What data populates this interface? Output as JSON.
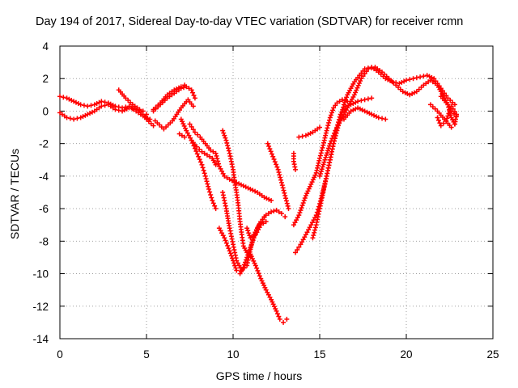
{
  "chart_data": {
    "type": "scatter",
    "title": "Day 194 of 2017, Sidereal Day-to-day VTEC variation (SDTVAR) for receiver rcmn",
    "xlabel": "GPS time / hours",
    "ylabel": "SDTVAR / TECUs",
    "xlim": [
      0,
      25
    ],
    "ylim": [
      -14,
      4
    ],
    "x_ticks": [
      "0",
      "5",
      "10",
      "15",
      "20",
      "25"
    ],
    "y_ticks": [
      "4",
      "2",
      "0",
      "-2",
      "-4",
      "-6",
      "-8",
      "-10",
      "-12",
      "-14"
    ],
    "x_tick_values": [
      0,
      5,
      10,
      15,
      20,
      25
    ],
    "y_tick_values": [
      4,
      2,
      0,
      -2,
      -4,
      -6,
      -8,
      -10,
      -12,
      -14
    ],
    "grid": true,
    "marker": "plus",
    "color": "#ff0000",
    "series": [
      {
        "points": [
          [
            0,
            0.9
          ],
          [
            0.4,
            0.8
          ],
          [
            0.8,
            0.6
          ],
          [
            1.2,
            0.4
          ],
          [
            1.6,
            0.3
          ],
          [
            2.0,
            0.4
          ],
          [
            2.4,
            0.6
          ],
          [
            2.8,
            0.5
          ],
          [
            3.2,
            0.3
          ],
          [
            3.6,
            0.2
          ],
          [
            4.0,
            0.3
          ],
          [
            4.4,
            0.0
          ],
          [
            4.8,
            -0.3
          ],
          [
            5.2,
            -0.5
          ]
        ]
      },
      {
        "points": [
          [
            0,
            -0.1
          ],
          [
            0.4,
            -0.4
          ],
          [
            0.8,
            -0.5
          ],
          [
            1.2,
            -0.4
          ],
          [
            1.6,
            -0.2
          ],
          [
            2.0,
            0.0
          ],
          [
            2.4,
            0.3
          ],
          [
            2.8,
            0.4
          ],
          [
            3.2,
            0.1
          ],
          [
            3.6,
            0.0
          ],
          [
            4.0,
            0.2
          ],
          [
            4.4,
            0.1
          ],
          [
            4.8,
            0.0
          ],
          [
            5.0,
            -0.2
          ]
        ]
      },
      {
        "points": [
          [
            3.4,
            1.3
          ],
          [
            3.8,
            0.8
          ],
          [
            4.2,
            0.4
          ],
          [
            4.6,
            0.1
          ],
          [
            5.0,
            -0.5
          ],
          [
            5.4,
            -0.9
          ]
        ]
      },
      {
        "points": [
          [
            5.4,
            0.0
          ],
          [
            5.8,
            0.4
          ],
          [
            6.2,
            0.8
          ],
          [
            6.6,
            1.1
          ],
          [
            7.0,
            1.4
          ],
          [
            7.3,
            1.5
          ],
          [
            7.6,
            1.3
          ],
          [
            7.8,
            0.8
          ]
        ]
      },
      {
        "points": [
          [
            5.4,
            0.1
          ],
          [
            5.8,
            0.5
          ],
          [
            6.2,
            1.0
          ],
          [
            6.6,
            1.3
          ],
          [
            7.0,
            1.5
          ],
          [
            7.2,
            1.6
          ]
        ]
      },
      {
        "points": [
          [
            5.5,
            -0.6
          ],
          [
            6.0,
            -1.1
          ],
          [
            6.5,
            -0.6
          ],
          [
            7.0,
            0.2
          ],
          [
            7.4,
            0.7
          ],
          [
            7.7,
            0.3
          ]
        ]
      },
      {
        "points": [
          [
            7.0,
            -0.5
          ],
          [
            7.3,
            -1.2
          ],
          [
            7.6,
            -1.8
          ],
          [
            7.8,
            -2.3
          ],
          [
            8.0,
            -2.8
          ],
          [
            8.2,
            -3.3
          ],
          [
            8.4,
            -4.0
          ],
          [
            8.6,
            -4.8
          ],
          [
            8.8,
            -5.5
          ],
          [
            9.0,
            -6.0
          ]
        ]
      },
      {
        "points": [
          [
            7.5,
            -0.8
          ],
          [
            7.8,
            -1.3
          ],
          [
            8.1,
            -1.6
          ],
          [
            8.4,
            -2.0
          ],
          [
            8.7,
            -2.4
          ],
          [
            9.0,
            -2.6
          ],
          [
            9.2,
            -3.4
          ],
          [
            9.5,
            -4.0
          ],
          [
            9.8,
            -4.2
          ],
          [
            10.2,
            -4.4
          ],
          [
            10.6,
            -4.6
          ],
          [
            11.0,
            -4.8
          ],
          [
            11.4,
            -5.0
          ],
          [
            11.8,
            -5.3
          ],
          [
            12.2,
            -5.5
          ]
        ]
      },
      {
        "points": [
          [
            7.6,
            -1.8
          ],
          [
            7.9,
            -2.2
          ],
          [
            8.2,
            -2.5
          ],
          [
            8.5,
            -2.7
          ],
          [
            8.8,
            -2.9
          ],
          [
            9.0,
            -3.3
          ]
        ]
      },
      {
        "points": [
          [
            6.9,
            -1.4
          ],
          [
            7.2,
            -1.6
          ]
        ]
      },
      {
        "points": [
          [
            9.4,
            -1.2
          ],
          [
            9.6,
            -1.8
          ],
          [
            9.8,
            -2.6
          ],
          [
            10.0,
            -3.6
          ],
          [
            10.1,
            -4.4
          ],
          [
            10.2,
            -5.0
          ],
          [
            10.3,
            -5.8
          ],
          [
            10.4,
            -6.8
          ],
          [
            10.5,
            -7.6
          ],
          [
            10.6,
            -8.3
          ],
          [
            10.8,
            -8.7
          ],
          [
            11.0,
            -8.9
          ]
        ]
      },
      {
        "points": [
          [
            9.4,
            -5.0
          ],
          [
            9.6,
            -6.0
          ],
          [
            9.8,
            -7.2
          ],
          [
            10.0,
            -8.2
          ],
          [
            10.2,
            -9.2
          ],
          [
            10.5,
            -9.8
          ],
          [
            10.8,
            -9.5
          ],
          [
            11.0,
            -8.5
          ],
          [
            11.2,
            -7.6
          ],
          [
            11.5,
            -7.0
          ],
          [
            11.8,
            -6.5
          ]
        ]
      },
      {
        "points": [
          [
            9.2,
            -7.2
          ],
          [
            9.5,
            -7.8
          ],
          [
            9.8,
            -8.6
          ],
          [
            10.0,
            -9.2
          ],
          [
            10.2,
            -9.8
          ],
          [
            10.4,
            -10.0
          ],
          [
            10.6,
            -9.6
          ],
          [
            10.8,
            -9.0
          ],
          [
            11.0,
            -8.4
          ],
          [
            11.2,
            -7.8
          ],
          [
            11.4,
            -7.2
          ],
          [
            11.6,
            -6.8
          ],
          [
            11.9,
            -6.4
          ],
          [
            12.2,
            -6.2
          ],
          [
            12.5,
            -6.1
          ],
          [
            12.8,
            -6.3
          ],
          [
            13.0,
            -6.5
          ]
        ]
      },
      {
        "points": [
          [
            11.0,
            -8.8
          ],
          [
            11.3,
            -9.5
          ],
          [
            11.6,
            -10.3
          ],
          [
            11.9,
            -11.0
          ],
          [
            12.2,
            -11.6
          ],
          [
            12.5,
            -12.3
          ],
          [
            12.7,
            -12.8
          ],
          [
            12.9,
            -13.0
          ],
          [
            13.1,
            -12.8
          ]
        ]
      },
      {
        "points": [
          [
            10.8,
            -7.2
          ],
          [
            11.0,
            -7.8
          ],
          [
            11.3,
            -7.6
          ],
          [
            11.6,
            -7.0
          ],
          [
            11.9,
            -6.8
          ]
        ]
      },
      {
        "points": [
          [
            12.0,
            -2.0
          ],
          [
            12.3,
            -2.8
          ],
          [
            12.6,
            -3.6
          ],
          [
            12.8,
            -4.4
          ],
          [
            13.0,
            -5.2
          ],
          [
            13.2,
            -6.0
          ]
        ]
      },
      {
        "points": [
          [
            13.5,
            -2.6
          ],
          [
            13.5,
            -3.1
          ],
          [
            13.6,
            -3.6
          ]
        ]
      },
      {
        "points": [
          [
            13.5,
            -7.0
          ],
          [
            13.8,
            -6.4
          ],
          [
            14.0,
            -5.8
          ],
          [
            14.2,
            -5.2
          ],
          [
            14.5,
            -4.5
          ],
          [
            14.8,
            -3.8
          ],
          [
            15.0,
            -2.9
          ],
          [
            15.2,
            -2.1
          ],
          [
            15.4,
            -1.2
          ],
          [
            15.6,
            -0.4
          ],
          [
            15.8,
            0.2
          ],
          [
            16.0,
            0.5
          ],
          [
            16.3,
            0.7
          ],
          [
            16.6,
            0.6
          ]
        ]
      },
      {
        "points": [
          [
            13.6,
            -8.7
          ],
          [
            13.9,
            -8.2
          ],
          [
            14.2,
            -7.6
          ],
          [
            14.5,
            -7.0
          ],
          [
            14.8,
            -6.4
          ],
          [
            15.0,
            -5.7
          ],
          [
            15.2,
            -4.9
          ],
          [
            15.4,
            -4.0
          ],
          [
            15.6,
            -3.0
          ],
          [
            15.8,
            -2.0
          ],
          [
            16.0,
            -1.0
          ],
          [
            16.2,
            -0.2
          ],
          [
            16.5,
            0.3
          ],
          [
            16.8,
            0.4
          ],
          [
            17.2,
            0.6
          ],
          [
            17.6,
            0.7
          ],
          [
            18.0,
            0.8
          ]
        ]
      },
      {
        "points": [
          [
            14.6,
            -7.8
          ],
          [
            14.8,
            -7.0
          ],
          [
            15.0,
            -6.0
          ],
          [
            15.2,
            -5.0
          ],
          [
            15.4,
            -4.0
          ],
          [
            15.6,
            -3.0
          ],
          [
            15.8,
            -2.0
          ],
          [
            16.0,
            -1.2
          ],
          [
            16.2,
            -0.4
          ],
          [
            16.4,
            0.4
          ],
          [
            16.6,
            1.0
          ],
          [
            16.8,
            1.4
          ],
          [
            17.0,
            1.8
          ],
          [
            17.3,
            2.2
          ],
          [
            17.6,
            2.6
          ],
          [
            18.0,
            2.7
          ],
          [
            18.4,
            2.4
          ],
          [
            18.8,
            2.0
          ],
          [
            19.2,
            1.8
          ],
          [
            19.6,
            1.7
          ],
          [
            20.0,
            1.9
          ],
          [
            20.4,
            2.0
          ],
          [
            20.8,
            2.1
          ],
          [
            21.2,
            2.2
          ],
          [
            21.6,
            2.0
          ],
          [
            22.0,
            1.4
          ],
          [
            22.4,
            0.8
          ],
          [
            22.8,
            0.4
          ]
        ]
      },
      {
        "points": [
          [
            15.0,
            -4.0
          ],
          [
            15.3,
            -3.0
          ],
          [
            15.6,
            -2.0
          ],
          [
            15.9,
            -1.2
          ],
          [
            16.2,
            -0.6
          ],
          [
            16.6,
            0.2
          ],
          [
            17.0,
            1.0
          ],
          [
            17.4,
            2.0
          ],
          [
            17.8,
            2.6
          ],
          [
            18.2,
            2.7
          ],
          [
            18.6,
            2.4
          ],
          [
            19.0,
            2.0
          ],
          [
            19.4,
            1.6
          ],
          [
            19.8,
            1.2
          ],
          [
            20.2,
            1.0
          ],
          [
            20.6,
            1.2
          ],
          [
            21.0,
            1.6
          ],
          [
            21.4,
            1.9
          ],
          [
            21.8,
            1.6
          ],
          [
            22.2,
            0.8
          ],
          [
            22.6,
            0.0
          ],
          [
            22.9,
            -0.3
          ]
        ]
      },
      {
        "points": [
          [
            16.4,
            -0.5
          ],
          [
            16.8,
            0.0
          ],
          [
            17.2,
            0.2
          ],
          [
            17.6,
            0.0
          ],
          [
            18.0,
            -0.2
          ],
          [
            18.4,
            -0.4
          ],
          [
            18.8,
            -0.5
          ]
        ]
      },
      {
        "points": [
          [
            13.8,
            -1.6
          ],
          [
            14.2,
            -1.5
          ],
          [
            14.6,
            -1.3
          ],
          [
            15.0,
            -1.0
          ]
        ]
      },
      {
        "points": [
          [
            22.0,
            0.9
          ],
          [
            22.4,
            0.4
          ],
          [
            22.6,
            -0.4
          ],
          [
            22.8,
            -0.8
          ],
          [
            22.9,
            -0.2
          ],
          [
            22.6,
            0.3
          ],
          [
            22.3,
            -0.6
          ],
          [
            22.0,
            -0.9
          ],
          [
            21.8,
            -0.4
          ]
        ]
      },
      {
        "points": [
          [
            21.4,
            0.4
          ],
          [
            21.8,
            0.0
          ],
          [
            22.2,
            -0.5
          ],
          [
            22.6,
            -1.0
          ],
          [
            22.8,
            -0.8
          ]
        ]
      }
    ]
  }
}
